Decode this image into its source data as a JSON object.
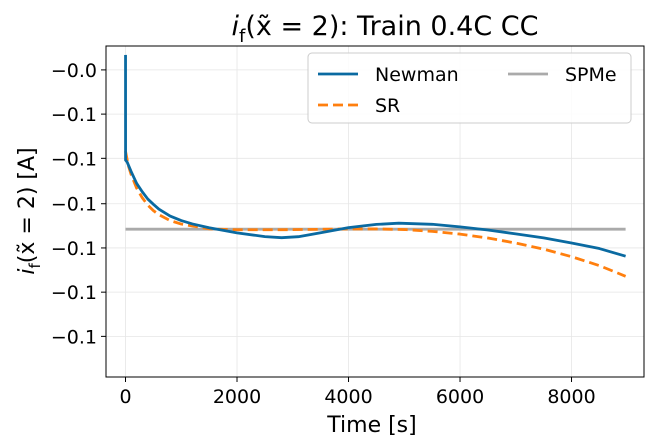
{
  "chart_data": {
    "type": "line",
    "title_prefix": "i",
    "title_sub": "f",
    "title_arg": "(x̃ = 2): Train 0.4C CC",
    "xlabel": "Time [s]",
    "ylabel_prefix": "i",
    "ylabel_sub": "f",
    "ylabel_arg": "(x̃ = 2) [A]",
    "xlim": [
      -350,
      9300
    ],
    "ylim": [
      -0.1235,
      -0.0958
    ],
    "x_ticks": [
      0,
      2000,
      4000,
      6000,
      8000
    ],
    "x_tick_labels": [
      "0",
      "2000",
      "4000",
      "6000",
      "8000"
    ],
    "y_ticks": [
      -0.0978,
      -0.1015,
      -0.1052,
      -0.109,
      -0.1127,
      -0.1164,
      -0.1201
    ],
    "y_tick_labels": [
      "−0.0",
      "−0.1",
      "−0.1",
      "−0.1",
      "−0.1",
      "−0.1",
      "−0.1"
    ],
    "grid": true,
    "legend_position": "top-right",
    "series": [
      {
        "name": "Newman",
        "color": "#0a6aa1",
        "style": "solid",
        "x": [
          0,
          0.5,
          1,
          30,
          100,
          200,
          300,
          400,
          500,
          600,
          800,
          1000,
          1200,
          1500,
          2000,
          2500,
          2800,
          3100,
          3500,
          4000,
          4500,
          4900,
          5500,
          6000,
          6500,
          7000,
          7500,
          8000,
          8500,
          8970
        ],
        "y": [
          -0.09655,
          -0.0966,
          -0.10535,
          -0.10552,
          -0.1063,
          -0.1073,
          -0.108,
          -0.10861,
          -0.10905,
          -0.10946,
          -0.11003,
          -0.11041,
          -0.11069,
          -0.11101,
          -0.11144,
          -0.11175,
          -0.11184,
          -0.11176,
          -0.11143,
          -0.111,
          -0.11073,
          -0.11063,
          -0.11072,
          -0.11094,
          -0.1112,
          -0.11152,
          -0.11186,
          -0.11229,
          -0.11275,
          -0.11339
        ]
      },
      {
        "name": "SR",
        "color": "#ff7f0e",
        "style": "dashed",
        "x": [
          0,
          50,
          100,
          200,
          300,
          400,
          500,
          600,
          800,
          1000,
          1500,
          2000,
          2500,
          3000,
          3500,
          4000,
          4500,
          5000,
          5500,
          6000,
          6500,
          7000,
          7500,
          8000,
          8500,
          8970
        ],
        "y": [
          -0.1046,
          -0.1058,
          -0.10655,
          -0.1077,
          -0.1085,
          -0.10912,
          -0.10958,
          -0.10992,
          -0.11041,
          -0.1107,
          -0.1111,
          -0.11118,
          -0.11118,
          -0.11117,
          -0.11114,
          -0.11111,
          -0.11111,
          -0.11116,
          -0.11131,
          -0.11154,
          -0.11187,
          -0.11229,
          -0.1128,
          -0.11343,
          -0.11418,
          -0.11507
        ]
      },
      {
        "name": "SPMe",
        "color": "#aaaaaa",
        "style": "solid",
        "x": [
          0,
          8970
        ],
        "y": [
          -0.11113,
          -0.11113
        ]
      }
    ]
  }
}
